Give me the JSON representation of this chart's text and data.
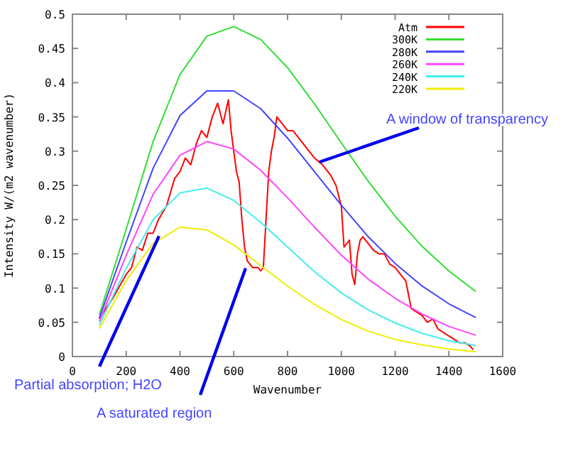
{
  "chart_data": {
    "type": "line",
    "xlabel": "Wavenumber",
    "ylabel": "Intensity W/(m2 wavenumber)",
    "xlim": [
      0,
      1600
    ],
    "ylim": [
      0,
      0.5
    ],
    "xticks": [
      0,
      200,
      400,
      600,
      800,
      1000,
      1200,
      1400,
      1600
    ],
    "yticks": [
      0,
      0.05,
      0.1,
      0.15,
      0.2,
      0.25,
      0.3,
      0.35,
      0.4,
      0.45,
      0.5
    ],
    "grid": false,
    "legend": "top right",
    "marker": "none",
    "line_style": "solid",
    "series": [
      {
        "name": "Atm",
        "color": "#ff0000",
        "x": [
          100,
          150,
          200,
          220,
          240,
          260,
          280,
          300,
          320,
          350,
          380,
          400,
          420,
          440,
          460,
          480,
          500,
          520,
          540,
          560,
          580,
          590,
          600,
          610,
          620,
          630,
          640,
          650,
          670,
          690,
          700,
          710,
          720,
          730,
          740,
          750,
          760,
          780,
          800,
          820,
          850,
          880,
          900,
          930,
          960,
          980,
          1000,
          1010,
          1030,
          1040,
          1050,
          1060,
          1070,
          1080,
          1100,
          1120,
          1140,
          1160,
          1180,
          1200,
          1220,
          1240,
          1250,
          1260,
          1280,
          1300,
          1320,
          1340,
          1360,
          1380,
          1400,
          1420,
          1440,
          1460,
          1480,
          1490
        ],
        "values": [
          0.055,
          0.085,
          0.12,
          0.13,
          0.16,
          0.155,
          0.18,
          0.18,
          0.2,
          0.22,
          0.26,
          0.27,
          0.29,
          0.28,
          0.31,
          0.33,
          0.32,
          0.35,
          0.37,
          0.34,
          0.375,
          0.33,
          0.3,
          0.27,
          0.255,
          0.2,
          0.16,
          0.14,
          0.13,
          0.13,
          0.125,
          0.13,
          0.2,
          0.27,
          0.3,
          0.32,
          0.35,
          0.34,
          0.33,
          0.33,
          0.315,
          0.3,
          0.29,
          0.28,
          0.265,
          0.25,
          0.22,
          0.16,
          0.17,
          0.12,
          0.105,
          0.15,
          0.17,
          0.175,
          0.165,
          0.155,
          0.15,
          0.15,
          0.135,
          0.13,
          0.12,
          0.11,
          0.09,
          0.07,
          0.065,
          0.06,
          0.05,
          0.055,
          0.04,
          0.035,
          0.03,
          0.025,
          0.02,
          0.02,
          0.015,
          0.01
        ]
      },
      {
        "name": "300K",
        "color": "#33dd33",
        "x": [
          100,
          200,
          300,
          400,
          500,
          600,
          700,
          800,
          900,
          1000,
          1100,
          1200,
          1300,
          1400,
          1500
        ],
        "values": [
          0.061,
          0.186,
          0.314,
          0.412,
          0.468,
          0.482,
          0.463,
          0.422,
          0.369,
          0.312,
          0.256,
          0.205,
          0.161,
          0.125,
          0.095
        ]
      },
      {
        "name": "280K",
        "color": "#4444ff",
        "x": [
          100,
          200,
          300,
          400,
          500,
          600,
          700,
          800,
          900,
          1000,
          1100,
          1200,
          1300,
          1400,
          1500
        ],
        "values": [
          0.056,
          0.167,
          0.275,
          0.352,
          0.388,
          0.388,
          0.362,
          0.319,
          0.27,
          0.221,
          0.175,
          0.136,
          0.103,
          0.077,
          0.057
        ]
      },
      {
        "name": "260K",
        "color": "#ff44ff",
        "x": [
          100,
          200,
          300,
          400,
          500,
          600,
          700,
          800,
          900,
          1000,
          1100,
          1200,
          1300,
          1400,
          1500
        ],
        "values": [
          0.051,
          0.148,
          0.237,
          0.294,
          0.314,
          0.303,
          0.272,
          0.232,
          0.189,
          0.148,
          0.113,
          0.085,
          0.062,
          0.044,
          0.031
        ]
      },
      {
        "name": "240K",
        "color": "#44eeee",
        "x": [
          100,
          200,
          300,
          400,
          500,
          600,
          700,
          800,
          900,
          1000,
          1100,
          1200,
          1300,
          1400,
          1500
        ],
        "values": [
          0.046,
          0.129,
          0.2,
          0.239,
          0.246,
          0.228,
          0.196,
          0.16,
          0.124,
          0.093,
          0.068,
          0.049,
          0.034,
          0.023,
          0.016
        ]
      },
      {
        "name": "220K",
        "color": "#eeee00",
        "x": [
          100,
          200,
          300,
          400,
          500,
          600,
          700,
          800,
          900,
          1000,
          1100,
          1200,
          1300,
          1400,
          1500
        ],
        "values": [
          0.041,
          0.111,
          0.165,
          0.189,
          0.185,
          0.163,
          0.133,
          0.103,
          0.076,
          0.054,
          0.037,
          0.025,
          0.017,
          0.011,
          0.007
        ]
      }
    ],
    "annotations": [
      {
        "text": "Partial absorption; H2O",
        "x": 322,
        "y": 0.176
      },
      {
        "text": "A saturated region",
        "x": 644,
        "y": 0.129
      },
      {
        "text": "A window of transparency",
        "x": 918,
        "y": 0.284
      }
    ]
  }
}
